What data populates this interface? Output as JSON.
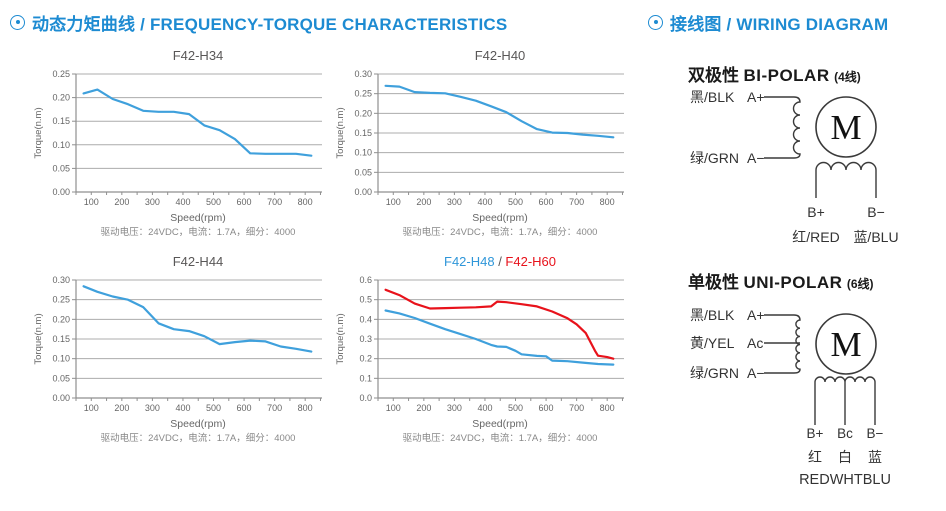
{
  "colors": {
    "accent_blue": "#1d8bd2",
    "line_blue": "#3fa0dc",
    "line_red": "#e8121b",
    "grid_gray": "#acacac",
    "axis_gray": "#8f8f8f"
  },
  "headers": {
    "left": {
      "text": "动态力矩曲线 / FREQUENCY-TORQUE CHARACTERISTICS"
    },
    "right": {
      "text": "接线图 / WIRING DIAGRAM"
    }
  },
  "chart_data": [
    {
      "type": "line",
      "title_parts": [
        {
          "text": "F42-H34",
          "color": "#595757"
        }
      ],
      "xlabel": "Speed(rpm)",
      "ylabel": "Torque(n.m)",
      "caption": "驱动电压：24VDC，电流：1.7A，细分：4000",
      "xlim": [
        50,
        855
      ],
      "ylim": [
        0,
        0.25
      ],
      "xticks": [
        100,
        200,
        300,
        400,
        500,
        600,
        700,
        800
      ],
      "xtick_minor_step": 50,
      "ytick_labels": [
        "0.00",
        "0.05",
        "0.10",
        "0.15",
        "0.20",
        "0.25"
      ],
      "grid": "horizontal",
      "series": [
        {
          "name": "F42-H34",
          "color": "#3fa0dc",
          "x": [
            75,
            120,
            170,
            220,
            270,
            320,
            370,
            420,
            470,
            520,
            570,
            620,
            670,
            720,
            770,
            820
          ],
          "y": [
            0.209,
            0.217,
            0.197,
            0.186,
            0.172,
            0.17,
            0.17,
            0.165,
            0.141,
            0.131,
            0.112,
            0.082,
            0.081,
            0.081,
            0.081,
            0.077
          ]
        }
      ]
    },
    {
      "type": "line",
      "title_parts": [
        {
          "text": "F42-H40",
          "color": "#595757"
        }
      ],
      "xlabel": "Speed(rpm)",
      "ylabel": "Torque(n.m)",
      "caption": "驱动电压：24VDC，电流：1.7A，细分：4000",
      "xlim": [
        50,
        855
      ],
      "ylim": [
        0,
        0.3
      ],
      "xticks": [
        100,
        200,
        300,
        400,
        500,
        600,
        700,
        800
      ],
      "xtick_minor_step": 50,
      "ytick_labels": [
        "0.00",
        "0.05",
        "0.10",
        "0.15",
        "0.20",
        "0.25",
        "0.30"
      ],
      "grid": "horizontal",
      "series": [
        {
          "name": "F42-H40",
          "color": "#3fa0dc",
          "x": [
            75,
            120,
            170,
            220,
            270,
            320,
            370,
            420,
            470,
            520,
            570,
            620,
            670,
            720,
            770,
            820
          ],
          "y": [
            0.27,
            0.268,
            0.254,
            0.252,
            0.251,
            0.242,
            0.232,
            0.218,
            0.203,
            0.18,
            0.16,
            0.151,
            0.15,
            0.146,
            0.143,
            0.139
          ]
        }
      ]
    },
    {
      "type": "line",
      "title_parts": [
        {
          "text": "F42-H44",
          "color": "#595757"
        }
      ],
      "xlabel": "Speed(rpm)",
      "ylabel": "Torque(n.m)",
      "caption": "驱动电压：24VDC，电流：1.7A，细分：4000",
      "xlim": [
        50,
        855
      ],
      "ylim": [
        0,
        0.3
      ],
      "xticks": [
        100,
        200,
        300,
        400,
        500,
        600,
        700,
        800
      ],
      "xtick_minor_step": 50,
      "ytick_labels": [
        "0.00",
        "0.05",
        "0.10",
        "0.15",
        "0.20",
        "0.25",
        "0.30"
      ],
      "grid": "horizontal",
      "series": [
        {
          "name": "F42-H44",
          "color": "#3fa0dc",
          "x": [
            75,
            120,
            170,
            220,
            270,
            320,
            370,
            420,
            470,
            520,
            570,
            620,
            670,
            720,
            770,
            820
          ],
          "y": [
            0.284,
            0.27,
            0.258,
            0.25,
            0.231,
            0.19,
            0.175,
            0.17,
            0.157,
            0.137,
            0.142,
            0.146,
            0.144,
            0.131,
            0.125,
            0.118
          ]
        }
      ]
    },
    {
      "type": "line",
      "title_parts": [
        {
          "text": "F42-H48",
          "color": "#2e96d9"
        },
        {
          "text": " / ",
          "color": "#595757"
        },
        {
          "text": "F42-H60",
          "color": "#e8121b"
        }
      ],
      "xlabel": "Speed(rpm)",
      "ylabel": "Torque(n.m)",
      "caption": "驱动电压：24VDC，电流：1.7A，细分：4000",
      "xlim": [
        50,
        855
      ],
      "ylim": [
        0,
        0.6
      ],
      "xticks": [
        100,
        200,
        300,
        400,
        500,
        600,
        700,
        800
      ],
      "xtick_minor_step": 50,
      "ytick_labels": [
        "0.0",
        "0.1",
        "0.2",
        "0.3",
        "0.4",
        "0.5",
        "0.6"
      ],
      "grid": "horizontal",
      "series": [
        {
          "name": "F42-H48",
          "color": "#3fa0dc",
          "x": [
            75,
            120,
            170,
            220,
            270,
            320,
            370,
            420,
            440,
            470,
            500,
            520,
            570,
            600,
            620,
            670,
            720,
            770,
            820
          ],
          "y": [
            0.445,
            0.43,
            0.407,
            0.378,
            0.35,
            0.325,
            0.3,
            0.27,
            0.262,
            0.26,
            0.24,
            0.222,
            0.214,
            0.212,
            0.19,
            0.187,
            0.18,
            0.173,
            0.17
          ]
        },
        {
          "name": "F42-H60",
          "color": "#e8121b",
          "x": [
            75,
            120,
            170,
            220,
            270,
            320,
            370,
            420,
            440,
            470,
            520,
            570,
            620,
            670,
            700,
            730,
            760,
            770,
            800,
            820
          ],
          "y": [
            0.55,
            0.523,
            0.48,
            0.455,
            0.457,
            0.459,
            0.461,
            0.466,
            0.49,
            0.487,
            0.477,
            0.466,
            0.44,
            0.405,
            0.375,
            0.33,
            0.24,
            0.215,
            0.208,
            0.2
          ]
        }
      ]
    }
  ],
  "wiring": {
    "bipolar": {
      "title_zh": "双极性",
      "title_en": "BI-POLAR",
      "title_note": "(4线)",
      "terminals": [
        {
          "color_label": "黑/BLK",
          "terminal": "A+"
        },
        {
          "color_label": "绿/GRN",
          "terminal": "A−"
        }
      ],
      "motor_label": "M",
      "bottom_terminals": {
        "left": "B+",
        "right": "B−"
      },
      "bottom_colors": {
        "left": "红/RED",
        "right": "蓝/BLU"
      }
    },
    "unipolar": {
      "title_zh": "单极性",
      "title_en": "UNI-POLAR",
      "title_note": "(6线)",
      "terminals": [
        {
          "color_label": "黑/BLK",
          "terminal": "A+"
        },
        {
          "color_label": "黄/YEL",
          "terminal": "Ac"
        },
        {
          "color_label": "绿/GRN",
          "terminal": "A−"
        }
      ],
      "motor_label": "M",
      "bottom_terminals": {
        "left": "B+",
        "center": "Bc",
        "right": "B−"
      },
      "bottom_colors": {
        "left": "红",
        "center": "白",
        "right": "蓝"
      },
      "bottom_colors_en": "REDWHTBLU"
    }
  }
}
